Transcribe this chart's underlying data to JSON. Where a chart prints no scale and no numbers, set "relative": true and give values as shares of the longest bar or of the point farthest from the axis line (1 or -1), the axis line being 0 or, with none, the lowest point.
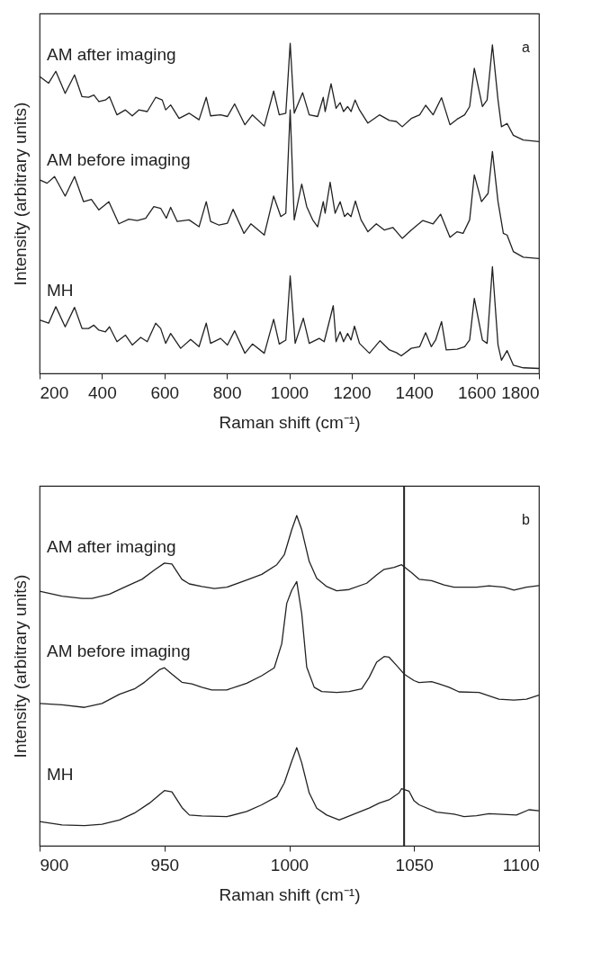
{
  "chart_data": [
    {
      "type": "line",
      "relative": true,
      "xlabel": "Raman shift (cm⁻¹)",
      "ylabel": "Intensity (arbitrary units)",
      "xlim": [
        200,
        1800
      ],
      "xticks": [
        200,
        400,
        600,
        800,
        1000,
        1200,
        1400,
        1600,
        1800
      ],
      "grid": false,
      "legend": false,
      "line_style": "solid",
      "annotations": [
        "a"
      ],
      "series": [
        {
          "name": "AM after imaging",
          "color": "#222222",
          "x": [
            200,
            229,
            252,
            282,
            312,
            336,
            357,
            374,
            390,
            411,
            424,
            448,
            475,
            497,
            518,
            545,
            572,
            593,
            604,
            620,
            647,
            679,
            711,
            734,
            748,
            780,
            802,
            825,
            858,
            882,
            920,
            950,
            968,
            989,
            1003,
            1016,
            1043,
            1064,
            1091,
            1109,
            1115,
            1134,
            1150,
            1163,
            1174,
            1187,
            1198,
            1211,
            1225,
            1252,
            1289,
            1321,
            1343,
            1362,
            1391,
            1418,
            1437,
            1461,
            1488,
            1515,
            1538,
            1562,
            1578,
            1593,
            1619,
            1634,
            1651,
            1669,
            1680,
            1698,
            1718,
            1750,
            1800
          ],
          "values": [
            0.899,
            0.879,
            0.915,
            0.848,
            0.904,
            0.838,
            0.836,
            0.843,
            0.823,
            0.828,
            0.838,
            0.783,
            0.798,
            0.78,
            0.798,
            0.793,
            0.836,
            0.828,
            0.798,
            0.813,
            0.772,
            0.788,
            0.768,
            0.836,
            0.78,
            0.783,
            0.778,
            0.816,
            0.753,
            0.783,
            0.749,
            0.855,
            0.783,
            0.788,
            1.0,
            0.788,
            0.85,
            0.783,
            0.778,
            0.836,
            0.793,
            0.877,
            0.803,
            0.82,
            0.793,
            0.808,
            0.793,
            0.828,
            0.798,
            0.758,
            0.783,
            0.766,
            0.763,
            0.747,
            0.772,
            0.783,
            0.812,
            0.783,
            0.835,
            0.753,
            0.77,
            0.783,
            0.808,
            0.924,
            0.808,
            0.828,
            0.995,
            0.828,
            0.747,
            0.757,
            0.721,
            0.707,
            0.702
          ]
        },
        {
          "name": "AM before imaging",
          "color": "#222222",
          "x": [
            200,
            224,
            248,
            282,
            312,
            341,
            366,
            390,
            422,
            454,
            486,
            513,
            540,
            566,
            588,
            606,
            620,
            641,
            679,
            711,
            734,
            748,
            775,
            802,
            820,
            855,
            877,
            920,
            950,
            973,
            989,
            1003,
            1016,
            1040,
            1056,
            1075,
            1091,
            1109,
            1115,
            1131,
            1147,
            1163,
            1177,
            1187,
            1198,
            1212,
            1230,
            1252,
            1279,
            1305,
            1332,
            1362,
            1391,
            1428,
            1461,
            1485,
            1515,
            1538,
            1557,
            1578,
            1593,
            1616,
            1637,
            1651,
            1669,
            1686,
            1698,
            1718,
            1750,
            1800
          ],
          "values": [
            0.586,
            0.576,
            0.596,
            0.537,
            0.596,
            0.52,
            0.527,
            0.495,
            0.52,
            0.453,
            0.467,
            0.463,
            0.47,
            0.505,
            0.5,
            0.47,
            0.503,
            0.46,
            0.465,
            0.444,
            0.52,
            0.46,
            0.449,
            0.455,
            0.497,
            0.424,
            0.453,
            0.419,
            0.537,
            0.475,
            0.485,
            0.798,
            0.465,
            0.573,
            0.505,
            0.465,
            0.444,
            0.52,
            0.485,
            0.579,
            0.485,
            0.52,
            0.475,
            0.485,
            0.475,
            0.522,
            0.465,
            0.429,
            0.453,
            0.434,
            0.442,
            0.409,
            0.434,
            0.463,
            0.453,
            0.482,
            0.412,
            0.429,
            0.424,
            0.465,
            0.601,
            0.52,
            0.545,
            0.672,
            0.52,
            0.424,
            0.419,
            0.369,
            0.352,
            0.348
          ]
        },
        {
          "name": "MH",
          "color": "#222222",
          "x": [
            200,
            229,
            252,
            282,
            312,
            336,
            357,
            374,
            390,
            411,
            424,
            448,
            475,
            497,
            524,
            545,
            572,
            588,
            604,
            620,
            652,
            684,
            711,
            734,
            748,
            780,
            802,
            825,
            858,
            882,
            920,
            950,
            968,
            989,
            1003,
            1019,
            1045,
            1064,
            1096,
            1112,
            1141,
            1150,
            1163,
            1174,
            1187,
            1198,
            1209,
            1225,
            1257,
            1291,
            1321,
            1343,
            1359,
            1391,
            1418,
            1437,
            1455,
            1469,
            1488,
            1503,
            1538,
            1562,
            1578,
            1593,
            1619,
            1634,
            1651,
            1669,
            1680,
            1698,
            1718,
            1750,
            1800
          ],
          "values": [
            0.162,
            0.152,
            0.202,
            0.141,
            0.2,
            0.136,
            0.136,
            0.146,
            0.131,
            0.126,
            0.141,
            0.096,
            0.116,
            0.086,
            0.109,
            0.096,
            0.152,
            0.136,
            0.091,
            0.121,
            0.076,
            0.103,
            0.081,
            0.152,
            0.091,
            0.106,
            0.086,
            0.129,
            0.061,
            0.089,
            0.061,
            0.164,
            0.089,
            0.101,
            0.295,
            0.091,
            0.167,
            0.091,
            0.106,
            0.096,
            0.205,
            0.096,
            0.126,
            0.096,
            0.121,
            0.101,
            0.143,
            0.091,
            0.061,
            0.099,
            0.071,
            0.063,
            0.053,
            0.076,
            0.081,
            0.123,
            0.081,
            0.101,
            0.157,
            0.071,
            0.073,
            0.081,
            0.101,
            0.227,
            0.101,
            0.091,
            0.323,
            0.086,
            0.04,
            0.069,
            0.025,
            0.017,
            0.015
          ]
        }
      ]
    },
    {
      "type": "line",
      "relative": true,
      "xlabel": "Raman shift (cm⁻¹)",
      "ylabel": "Intensity (arbitrary units)",
      "xlim": [
        900,
        1100
      ],
      "xticks": [
        900,
        950,
        1000,
        1050,
        1100
      ],
      "grid": false,
      "legend": false,
      "line_style": "solid",
      "annotations": [
        "b"
      ],
      "ref_lines": [
        {
          "axis": "x",
          "value": 1046
        }
      ],
      "series": [
        {
          "name": "AM after imaging",
          "color": "#222222",
          "x": [
            900,
            909,
            917,
            921,
            928,
            934,
            941,
            946,
            950,
            953,
            957,
            960,
            965,
            970,
            975,
            983,
            989,
            995,
            998,
            1001,
            1003,
            1005,
            1008,
            1011,
            1015,
            1019,
            1024,
            1031,
            1035,
            1038,
            1042,
            1045,
            1049,
            1052,
            1057,
            1062,
            1066,
            1075,
            1080,
            1086,
            1090,
            1095,
            1100
          ],
          "values": [
            0.771,
            0.756,
            0.749,
            0.749,
            0.762,
            0.783,
            0.807,
            0.835,
            0.856,
            0.853,
            0.807,
            0.793,
            0.785,
            0.779,
            0.783,
            0.805,
            0.822,
            0.851,
            0.881,
            0.957,
            1.0,
            0.957,
            0.861,
            0.81,
            0.785,
            0.772,
            0.776,
            0.795,
            0.82,
            0.837,
            0.843,
            0.851,
            0.827,
            0.807,
            0.803,
            0.79,
            0.783,
            0.783,
            0.787,
            0.783,
            0.774,
            0.783,
            0.788
          ]
        },
        {
          "name": "AM before imaging",
          "color": "#222222",
          "x": [
            900,
            909,
            918,
            925,
            932,
            938,
            942,
            948,
            950,
            953,
            957,
            961,
            965,
            969,
            975,
            983,
            989,
            994,
            997,
            999,
            1001,
            1003,
            1005,
            1007,
            1010,
            1013,
            1019,
            1024,
            1029,
            1032,
            1035,
            1038,
            1040,
            1043,
            1046,
            1050,
            1052,
            1057,
            1060,
            1064,
            1068,
            1076,
            1084,
            1090,
            1095,
            1100
          ],
          "values": [
            0.431,
            0.427,
            0.419,
            0.431,
            0.459,
            0.475,
            0.495,
            0.533,
            0.539,
            0.52,
            0.495,
            0.49,
            0.48,
            0.472,
            0.472,
            0.492,
            0.515,
            0.539,
            0.612,
            0.734,
            0.774,
            0.8,
            0.703,
            0.541,
            0.48,
            0.467,
            0.464,
            0.467,
            0.475,
            0.51,
            0.556,
            0.573,
            0.571,
            0.546,
            0.52,
            0.5,
            0.494,
            0.497,
            0.49,
            0.48,
            0.466,
            0.464,
            0.444,
            0.441,
            0.444,
            0.456
          ]
        },
        {
          "name": "MH",
          "color": "#222222",
          "x": [
            900,
            909,
            918,
            925,
            932,
            938,
            944,
            950,
            953,
            957,
            960,
            965,
            975,
            983,
            989,
            995,
            998,
            1001,
            1003,
            1005,
            1008,
            1011,
            1015,
            1020,
            1025,
            1032,
            1036,
            1040,
            1044,
            1045,
            1048,
            1050,
            1052,
            1059,
            1066,
            1070,
            1075,
            1080,
            1091,
            1096,
            1100
          ],
          "values": [
            0.073,
            0.063,
            0.061,
            0.065,
            0.078,
            0.099,
            0.129,
            0.167,
            0.163,
            0.116,
            0.093,
            0.09,
            0.088,
            0.104,
            0.124,
            0.149,
            0.19,
            0.256,
            0.297,
            0.251,
            0.16,
            0.114,
            0.093,
            0.078,
            0.093,
            0.114,
            0.129,
            0.139,
            0.16,
            0.173,
            0.165,
            0.136,
            0.124,
            0.102,
            0.096,
            0.088,
            0.091,
            0.097,
            0.093,
            0.109,
            0.106
          ]
        }
      ]
    }
  ]
}
